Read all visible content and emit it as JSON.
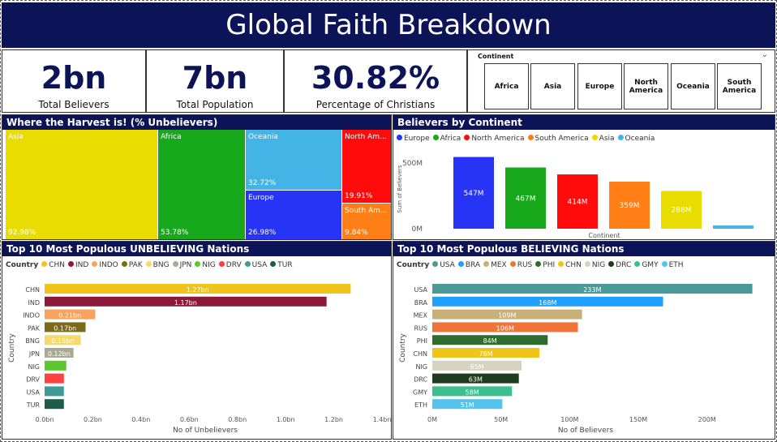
{
  "header": {
    "title": "Global Faith Breakdown"
  },
  "kpis": [
    {
      "value": "2bn",
      "label": "Total Believers"
    },
    {
      "value": "7bn",
      "label": "Total Population"
    },
    {
      "value": "30.82%",
      "label": "Percentage of Christians"
    }
  ],
  "slicer": {
    "title": "Continent",
    "options": [
      "Africa",
      "Asia",
      "Europe",
      "North America",
      "Oceania",
      "South America"
    ]
  },
  "treemap": {
    "title": "Where the Harvest is! (% Unbelievers)",
    "items": [
      {
        "name": "Asia",
        "pct": "92.98%",
        "color": "#e8dc00"
      },
      {
        "name": "Africa",
        "pct": "53.78%",
        "color": "#17a81b"
      },
      {
        "name": "Oceania",
        "pct": "32.72%",
        "color": "#44b3e6"
      },
      {
        "name": "Europe",
        "pct": "26.98%",
        "color": "#2734f5"
      },
      {
        "name": "North Am...",
        "pct": "19.91%",
        "color": "#ff0b0b"
      },
      {
        "name": "South Am...",
        "pct": "9.84%",
        "color": "#ff7f16"
      }
    ]
  },
  "continent_chart": {
    "title": "Believers by Continent",
    "ylabel": "Sum of Believers",
    "xlabel": "Continent",
    "ticks": [
      "500M",
      "0M"
    ]
  },
  "unbelieving_chart": {
    "title": "Top 10 Most Populous UNBELIEVING Nations",
    "legend_title": "Country",
    "ylabel": "Country",
    "xlabel": "No of Unbelievers",
    "ticks": [
      "0.0bn",
      "0.2bn",
      "0.4bn",
      "0.6bn",
      "0.8bn",
      "1.0bn",
      "1.2bn",
      "1.4bn"
    ]
  },
  "believing_chart": {
    "title": "Top 10 Most Populous BELIEVING Nations",
    "legend_title": "Country",
    "ylabel": "Country",
    "xlabel": "No of Believers",
    "ticks": [
      "0M",
      "50M",
      "100M",
      "150M",
      "200M"
    ]
  },
  "chart_data": [
    {
      "type": "bar",
      "title": "Believers by Continent",
      "xlabel": "Continent",
      "ylabel": "Sum of Believers",
      "ylim": [
        0,
        600
      ],
      "categories": [
        "Europe",
        "Africa",
        "North America",
        "South America",
        "Asia",
        "Oceania"
      ],
      "values": [
        547,
        467,
        414,
        359,
        288,
        25
      ],
      "labels": [
        "547M",
        "467M",
        "414M",
        "359M",
        "288M",
        ""
      ],
      "colors": [
        "#2734f5",
        "#17a81b",
        "#ff0b0b",
        "#ff7f16",
        "#e8dc00",
        "#44b3e6"
      ],
      "legend": "top-left"
    },
    {
      "type": "bar",
      "orientation": "horizontal",
      "title": "Top 10 Most Populous UNBELIEVING Nations",
      "xlabel": "No of Unbelievers",
      "ylabel": "Country",
      "xlim": [
        0,
        1.4
      ],
      "categories": [
        "CHN",
        "IND",
        "INDO",
        "PAK",
        "BNG",
        "JPN",
        "NIG",
        "DRV",
        "USA",
        "TUR"
      ],
      "values": [
        1.27,
        1.17,
        0.21,
        0.17,
        0.15,
        0.12,
        0.09,
        0.08,
        0.08,
        0.08
      ],
      "labels": [
        "1.27bn",
        "1.17bn",
        "0.21bn",
        "0.17bn",
        "0.15bn",
        "0.12bn",
        "",
        "",
        "",
        ""
      ],
      "colors": [
        "#f0c419",
        "#8b1a3a",
        "#f7a35c",
        "#7a6a1a",
        "#f7d96b",
        "#a9a994",
        "#5cc72a",
        "#ff4040",
        "#3f9a98",
        "#1e5c4a"
      ],
      "legend": "top-left"
    },
    {
      "type": "bar",
      "orientation": "horizontal",
      "title": "Top 10 Most Populous BELIEVING Nations",
      "xlabel": "No of Believers",
      "ylabel": "Country",
      "xlim": [
        0,
        235
      ],
      "categories": [
        "USA",
        "BRA",
        "MEX",
        "RUS",
        "PHI",
        "CHN",
        "NIG",
        "DRC",
        "GMY",
        "ETH"
      ],
      "values": [
        233,
        168,
        109,
        106,
        84,
        78,
        65,
        63,
        58,
        51
      ],
      "labels": [
        "233M",
        "168M",
        "109M",
        "106M",
        "84M",
        "78M",
        "65M",
        "63M",
        "58M",
        "51M"
      ],
      "colors": [
        "#4b9a9a",
        "#1f9fff",
        "#c8b07a",
        "#f0743a",
        "#2e6b2e",
        "#f0c419",
        "#d4d4c0",
        "#1e3d1e",
        "#3cbf8f",
        "#54c4ee"
      ],
      "legend": "top-left"
    }
  ]
}
